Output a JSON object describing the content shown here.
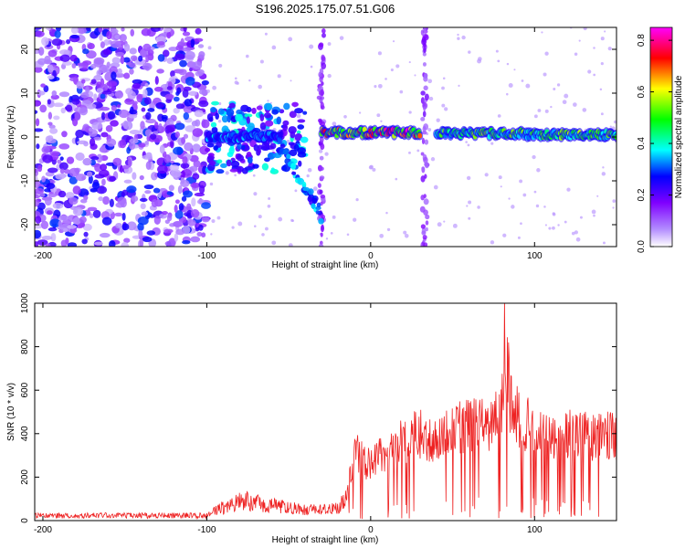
{
  "title": "S196.2025.175.07.51.G06",
  "colors": {
    "line": "#ee2222",
    "colormap": [
      "#ffffff",
      "#7f00ff",
      "#0000ff",
      "#00ffff",
      "#00ff00",
      "#ffff00",
      "#ff0000",
      "#ff00ff"
    ]
  },
  "chart_data": [
    {
      "type": "heatmap",
      "xlabel": "Height of straight line (km)",
      "ylabel": "Frequency (Hz)",
      "xlim": [
        -205,
        150
      ],
      "ylim": [
        -25,
        25
      ],
      "xticks": [
        -200,
        -100,
        0,
        100
      ],
      "yticks": [
        -20,
        -10,
        0,
        10,
        20
      ],
      "colorbar": {
        "label": "Normalized spectral amplitude",
        "range": [
          0,
          0.85
        ],
        "ticks": [
          0.0,
          0.2,
          0.4,
          0.6,
          0.8
        ]
      },
      "noise_region_x": [
        -205,
        -100
      ],
      "ridge_segments": [
        {
          "x": [
            -100,
            -55
          ],
          "freq": 0,
          "amplitude": 0.3
        },
        {
          "x": [
            -30,
            0
          ],
          "freq": 1,
          "amplitude": 0.6
        },
        {
          "x": [
            0,
            30
          ],
          "freq": 1,
          "amplitude": 0.65
        },
        {
          "x": [
            40,
            95
          ],
          "freq": 0.8,
          "amplitude": 0.45
        },
        {
          "x": [
            95,
            150
          ],
          "freq": 0.5,
          "amplitude": 0.45
        }
      ]
    },
    {
      "type": "line",
      "xlabel": "Height of straight line (km)",
      "ylabel": "SNR (10 * v/v)",
      "xlim": [
        -205,
        150
      ],
      "ylim": [
        0,
        1000
      ],
      "xticks": [
        -200,
        -100,
        0,
        100
      ],
      "yticks": [
        0,
        200,
        400,
        600,
        800,
        1000
      ],
      "series": [
        {
          "x": [
            -205,
            -150,
            -100,
            -85,
            -80,
            -70,
            -60,
            -50,
            -40,
            -30,
            -20,
            -15,
            -12,
            -10,
            -5,
            0,
            5,
            10,
            15,
            20,
            25,
            30,
            35,
            40,
            45,
            50,
            55,
            60,
            65,
            70,
            75,
            80,
            82,
            85,
            90,
            95,
            100,
            110,
            120,
            130,
            140,
            150
          ],
          "values": [
            20,
            20,
            20,
            70,
            100,
            80,
            70,
            60,
            50,
            50,
            60,
            100,
            250,
            350,
            300,
            280,
            320,
            330,
            380,
            400,
            420,
            430,
            400,
            420,
            440,
            450,
            460,
            470,
            490,
            480,
            500,
            520,
            950,
            600,
            520,
            480,
            460,
            440,
            430,
            420,
            420,
            420
          ]
        }
      ]
    }
  ]
}
